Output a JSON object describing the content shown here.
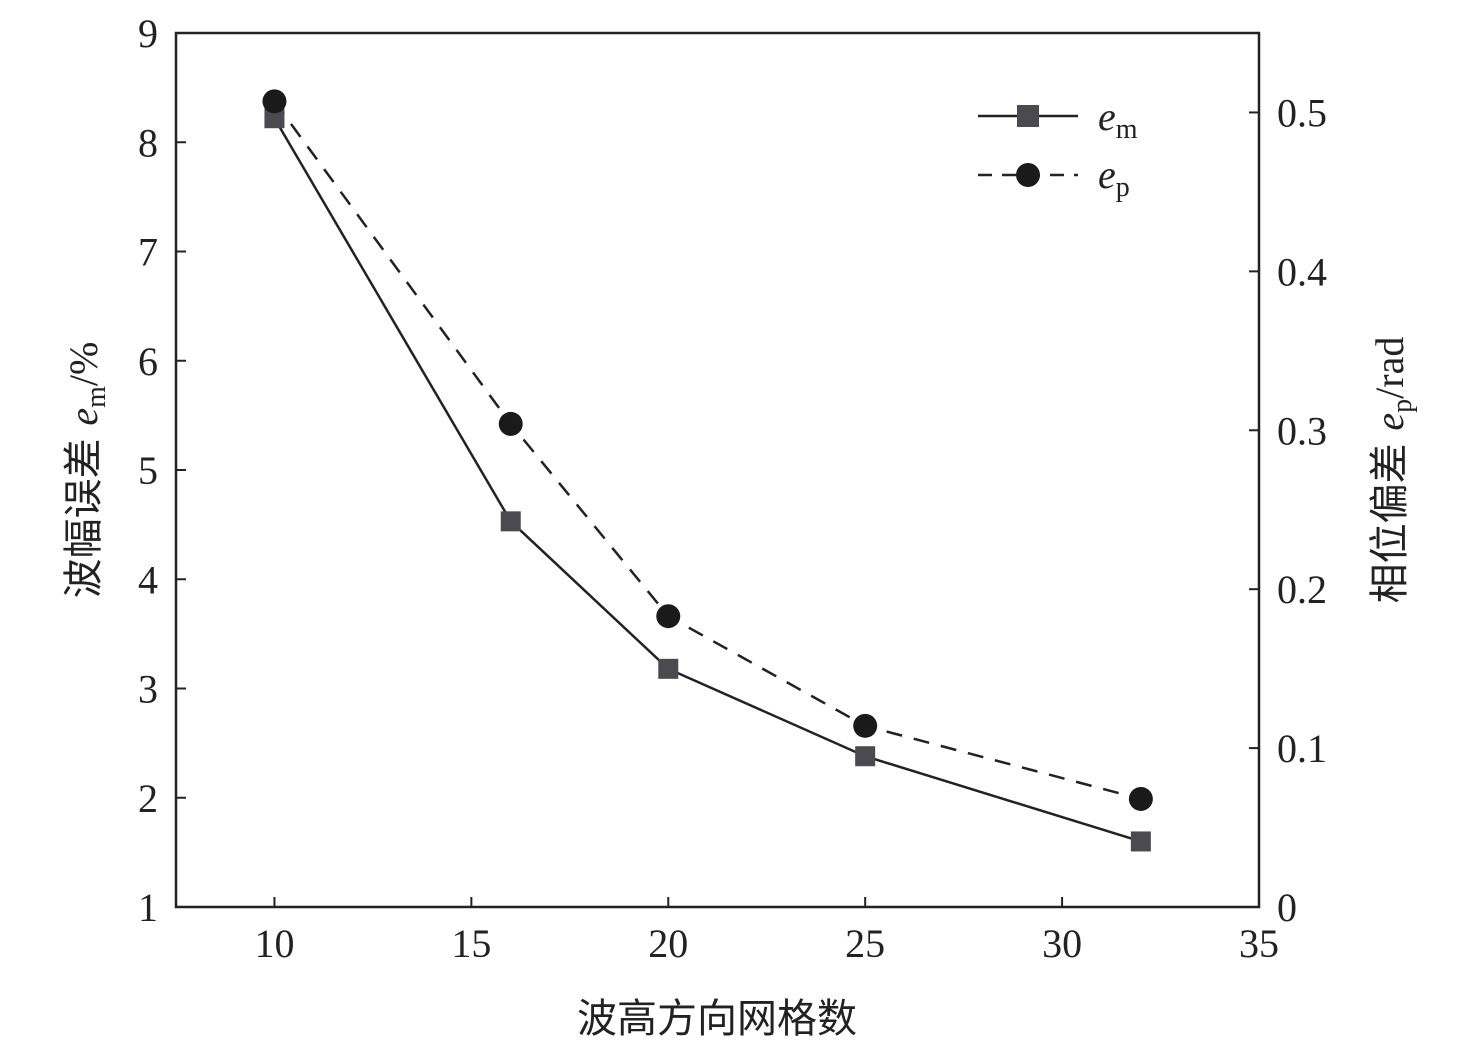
{
  "chart_data": {
    "type": "line",
    "x": [
      10,
      16,
      20,
      25,
      32
    ],
    "xlim": [
      7.5,
      35
    ],
    "x_ticks": [
      "10",
      "15",
      "20",
      "25",
      "30",
      "35"
    ],
    "xlabel": "波高方向网格数",
    "y_left": {
      "label_prefix": "波幅误差 ",
      "label_var": "e",
      "label_sub": "m",
      "label_suffix": "/%",
      "ylim": [
        1,
        9
      ],
      "ticks": [
        "1",
        "2",
        "3",
        "4",
        "5",
        "6",
        "7",
        "8",
        "9"
      ]
    },
    "y_right": {
      "label_prefix": "相位偏差 ",
      "label_var": "e",
      "label_sub": "p",
      "label_suffix": "/rad",
      "ylim": [
        0,
        0.55
      ],
      "ticks": [
        "0",
        "0.1",
        "0.2",
        "0.3",
        "0.4",
        "0.5"
      ]
    },
    "series": [
      {
        "name_var": "e",
        "name_sub": "m",
        "axis": "left",
        "values": [
          8.22,
          4.53,
          3.18,
          2.38,
          1.6
        ],
        "line": "solid",
        "marker": "square",
        "color": "#4a4a50"
      },
      {
        "name_var": "e",
        "name_sub": "p",
        "axis": "right",
        "values": [
          0.507,
          0.304,
          0.183,
          0.114,
          0.068
        ],
        "line": "dashed",
        "marker": "circle",
        "color": "#1a1a1a"
      }
    ],
    "legend_position": "top-right",
    "grid": false
  }
}
